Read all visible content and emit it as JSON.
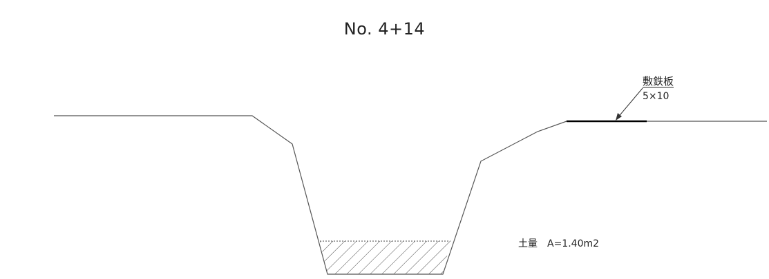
{
  "drawing": {
    "title": "No. 4+14",
    "plate_label": "敷鉄板",
    "plate_size": "5×10",
    "area_label": "土量",
    "area_value": "A=1.40m2"
  },
  "colors": {
    "line": "#555555",
    "plate": "#000000",
    "hatch": "#444444"
  }
}
